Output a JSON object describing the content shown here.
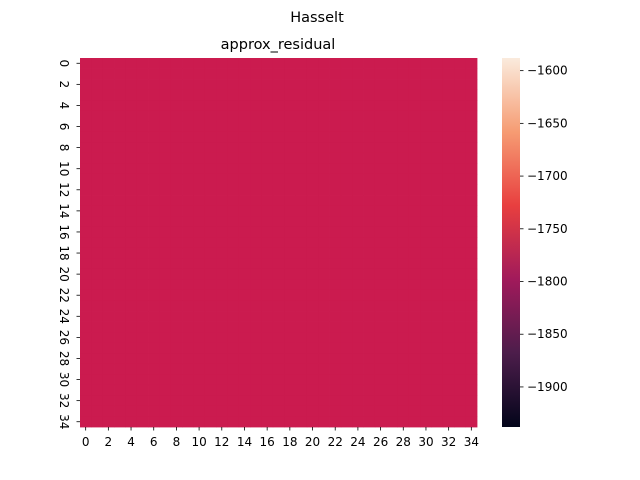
{
  "chart_data": {
    "type": "heatmap",
    "suptitle": "Hasselt",
    "title": "approx_residual",
    "rows": 35,
    "cols": 35,
    "fill_value": -1755,
    "fill_color": "#cb1b4f",
    "x_tick_labels": [
      "0",
      "2",
      "4",
      "6",
      "8",
      "10",
      "12",
      "14",
      "16",
      "18",
      "20",
      "22",
      "24",
      "26",
      "28",
      "30",
      "32",
      "34"
    ],
    "y_tick_labels": [
      "0",
      "2",
      "4",
      "6",
      "8",
      "10",
      "12",
      "14",
      "16",
      "18",
      "20",
      "22",
      "24",
      "26",
      "28",
      "30",
      "32",
      "34"
    ],
    "colorbar": {
      "range": [
        -1938,
        -1588
      ],
      "ticks": [
        -1600,
        -1650,
        -1700,
        -1750,
        -1800,
        -1850,
        -1900
      ],
      "tick_labels": [
        "−1600",
        "−1650",
        "−1700",
        "−1750",
        "−1800",
        "−1850",
        "−1900"
      ],
      "colormap": "rocket",
      "stops": [
        "#03051a",
        "#4c1d4b",
        "#a11a5b",
        "#e83f3f",
        "#f69c73",
        "#faebdd"
      ]
    }
  }
}
